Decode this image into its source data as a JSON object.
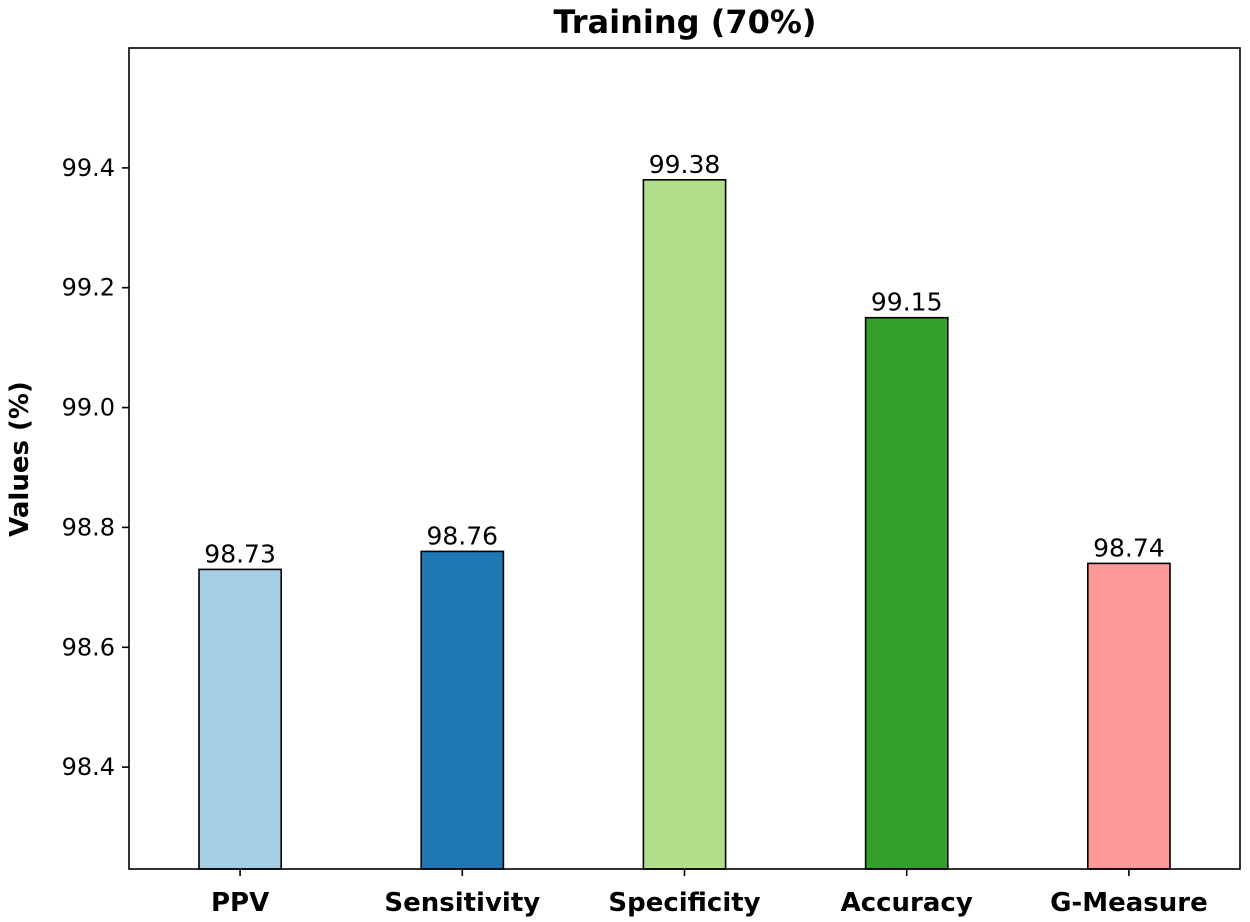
{
  "chart_data": {
    "type": "bar",
    "title": "Training (70%)",
    "xlabel": "",
    "ylabel": "Values (%)",
    "categories": [
      "PPV",
      "Sensitivity",
      "Specificity",
      "Accuracy",
      "G-Measure"
    ],
    "values": [
      98.73,
      98.76,
      99.38,
      99.15,
      98.74
    ],
    "value_labels": [
      "98.73",
      "98.76",
      "99.38",
      "99.15",
      "98.74"
    ],
    "colors": [
      "#a6cee3",
      "#1f78b4",
      "#b2df8a",
      "#33a02c",
      "#fb9a99"
    ],
    "yticks": [
      98.4,
      98.6,
      98.8,
      99.0,
      99.2,
      99.4
    ],
    "ytick_labels": [
      "98.4",
      "98.6",
      "98.8",
      "99.0",
      "99.2",
      "99.4"
    ],
    "ylim": [
      98.23,
      99.6
    ],
    "grid": false,
    "legend": "none"
  }
}
